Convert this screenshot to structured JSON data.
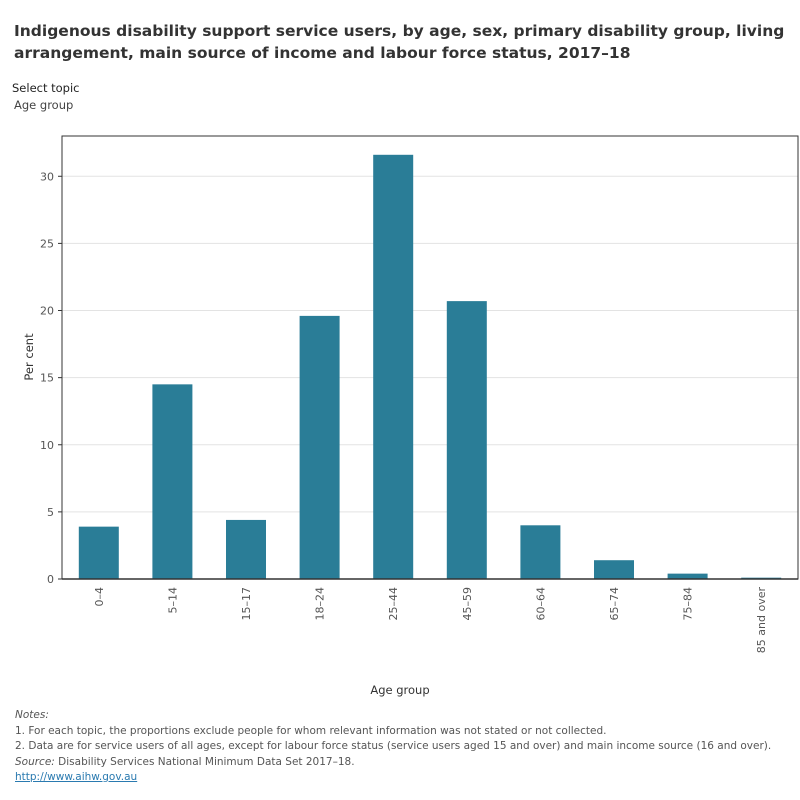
{
  "title": "Indigenous disability support service users, by age, sex, primary disability group, living arrangement, main source of income and labour force status, 2017–18",
  "selector": {
    "label": "Select topic",
    "value": "Age group"
  },
  "chart_data": {
    "type": "bar",
    "xlabel": "Age group",
    "ylabel": "Per cent",
    "categories": [
      "0–4",
      "5–14",
      "15–17",
      "18–24",
      "25–44",
      "45–59",
      "60–64",
      "65–74",
      "75–84",
      "85 and over"
    ],
    "values": [
      3.9,
      14.5,
      4.4,
      19.6,
      31.6,
      20.7,
      4.0,
      1.4,
      0.4,
      0.1
    ],
    "ylim": [
      0,
      33
    ],
    "yticks": [
      0,
      5,
      10,
      15,
      20,
      25,
      30
    ],
    "grid": true,
    "bar_color": "#2a7d97"
  },
  "notes": {
    "heading": "Notes:",
    "items": [
      "1. For each topic, the proportions exclude people for whom relevant information was not stated or not collected.",
      "2. Data are for service users of all ages, except for labour force status (service users aged 15 and over) and main income source (16 and over)."
    ],
    "source_label": "Source:",
    "source_text": " Disability Services National Minimum Data Set 2017–18.",
    "link": "http://www.aihw.gov.au"
  }
}
